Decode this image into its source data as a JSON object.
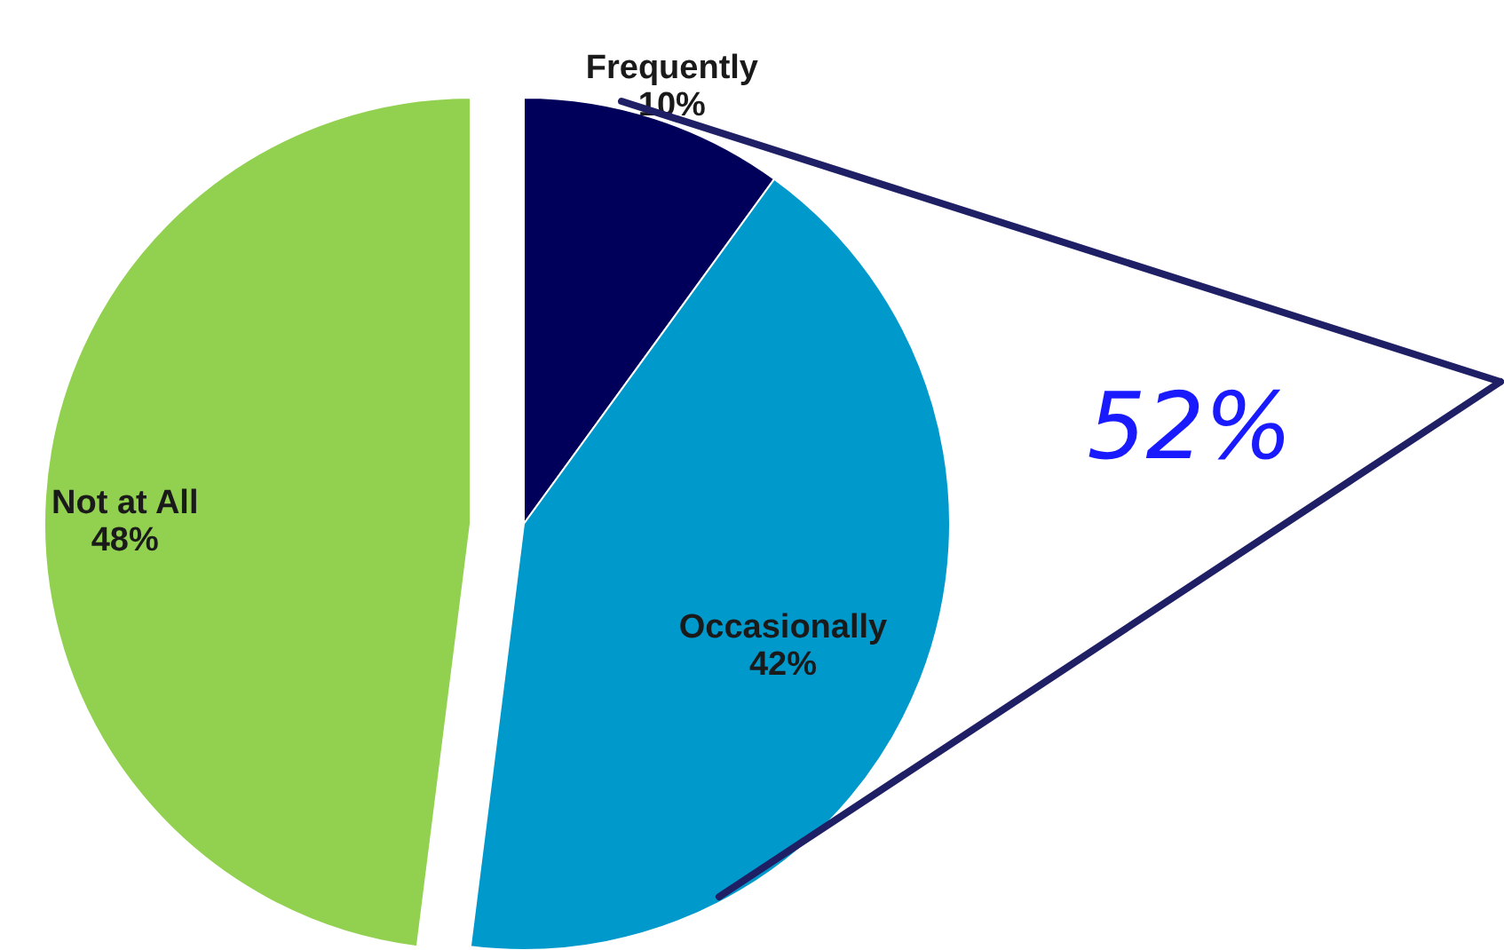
{
  "chart_data": {
    "type": "pie",
    "categories": [
      "Frequently",
      "Occasionally",
      "Not at All"
    ],
    "values": [
      10,
      42,
      48
    ],
    "value_labels": [
      "10%",
      "42%",
      "48%"
    ],
    "colors": [
      "#00005a",
      "#0099cc",
      "#92d050"
    ],
    "annotations": [
      "52%"
    ]
  }
}
